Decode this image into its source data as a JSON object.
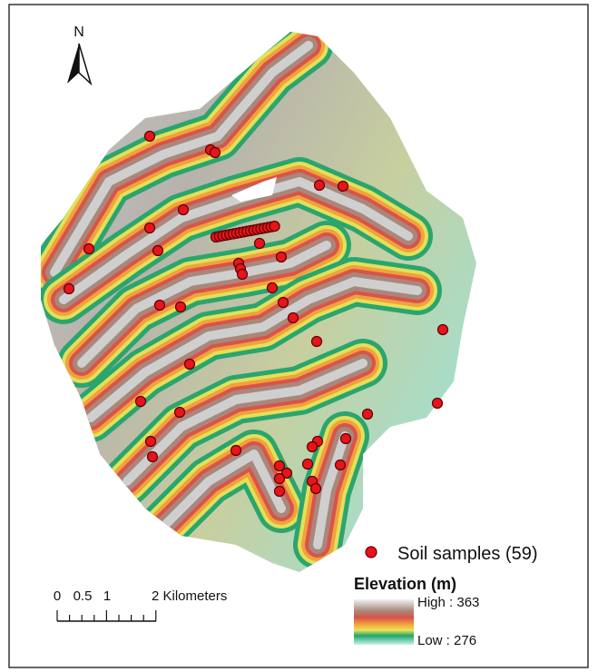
{
  "north_arrow": {
    "label": "N"
  },
  "legend": {
    "samples": "Soil samples (59)",
    "elevation_title": "Elevation (m)",
    "high": "High : 363",
    "low": "Low : 276"
  },
  "scale_bar": {
    "labels": [
      "0",
      "0.5",
      "1",
      "2 Kilometers"
    ]
  }
}
